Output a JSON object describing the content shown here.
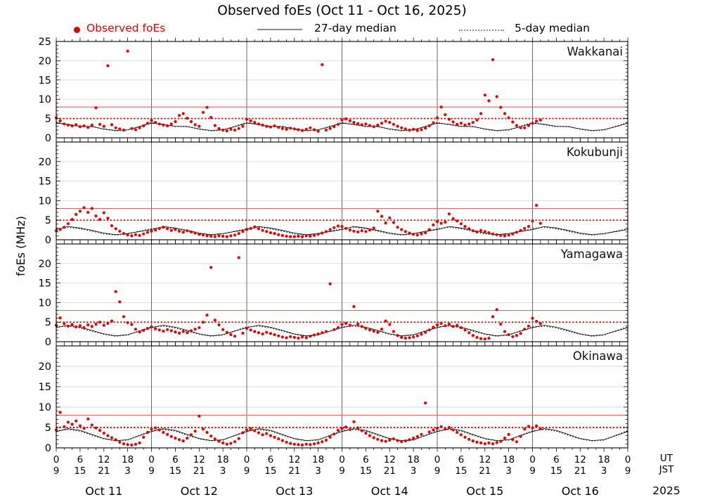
{
  "title": "Observed foEs (Oct 11 - Oct 16, 2025)",
  "legend": {
    "observed_label": "Observed foEs",
    "median27_label": "27-day median",
    "median5_label": "5-day median"
  },
  "colors": {
    "observed": "#e60000",
    "threshold_solid": "#d96b6b",
    "threshold_dotted": "#dd0000",
    "median_line": "#000000",
    "day_boundary": "#5a5a5a",
    "grid": "#d9d9d9",
    "frame": "#000000"
  },
  "axis": {
    "ylabel": "foEs (MHz)",
    "ut_label": "UT",
    "jst_label": "JST",
    "year_label": "2025",
    "dates": [
      "Oct 11",
      "Oct 12",
      "Oct 13",
      "Oct 14",
      "Oct 15",
      "Oct 16"
    ],
    "ut_cycle": [
      "0",
      "6",
      "12",
      "18"
    ],
    "jst_cycle": [
      "9",
      "15",
      "21",
      "3"
    ],
    "tick_step_hours": 6,
    "hours_total": 144
  },
  "chart_data": {
    "type": "scatter",
    "x_unit": "hours UT from Oct 11 00:00 (axis labeled in UT and JST)",
    "x_range_hours": [
      0,
      144
    ],
    "ylim": [
      0,
      25
    ],
    "yticks": [
      0,
      5,
      10,
      15,
      20,
      25
    ],
    "ylabel": "foEs (MHz)",
    "days": [
      "Oct 11",
      "Oct 12",
      "Oct 13",
      "Oct 14",
      "Oct 15",
      "Oct 16"
    ],
    "threshold_lines_mhz": {
      "solid_red": 8,
      "dotted_red": 5
    },
    "series_meta": {
      "observed": "red dots, hourly estimated values; data ends Oct 16 ~02 UT",
      "median27": "27-day median, thin solid black line, 3-hourly repeating daily pattern",
      "median5": "5-day median, dotted black line, 3-hourly repeating daily pattern"
    },
    "stations": [
      {
        "name": "Wakkanai",
        "observed": {
          "t0_hours": 0,
          "dt_hours": 1,
          "values": [
            5.2,
            4.4,
            3.6,
            3.3,
            3.1,
            3.4,
            2.9,
            3.1,
            2.7,
            3.3,
            7.8,
            3.5,
            3.0,
            18.7,
            3.4,
            2.6,
            2.3,
            2.0,
            22.5,
            2.4,
            2.1,
            2.6,
            3.1,
            3.8,
            4.5,
            4.0,
            3.6,
            3.3,
            3.1,
            3.6,
            4.2,
            5.8,
            6.3,
            5.1,
            4.2,
            3.4,
            3.0,
            6.6,
            7.9,
            5.3,
            3.2,
            2.4,
            2.0,
            1.8,
            2.2,
            2.0,
            2.4,
            3.0,
            4.8,
            4.4,
            4.0,
            3.6,
            3.3,
            3.0,
            2.8,
            3.1,
            2.7,
            2.4,
            2.2,
            2.5,
            2.3,
            2.1,
            1.9,
            2.2,
            2.6,
            2.1,
            1.7,
            19.0,
            2.0,
            2.4,
            2.9,
            3.5,
            4.6,
            4.9,
            4.4,
            4.0,
            3.7,
            3.4,
            3.6,
            3.2,
            2.9,
            3.3,
            3.8,
            4.3,
            4.0,
            3.5,
            3.0,
            2.6,
            2.3,
            2.0,
            2.2,
            1.9,
            2.1,
            2.5,
            3.1,
            3.9,
            5.2,
            8.0,
            6.0,
            4.8,
            4.1,
            3.5,
            3.8,
            3.3,
            3.6,
            4.0,
            4.6,
            6.3,
            11.1,
            9.6,
            20.3,
            10.7,
            7.9,
            6.3,
            5.2,
            4.1,
            3.2,
            2.6,
            2.6,
            3.2,
            3.8,
            4.3,
            4.6
          ]
        },
        "median27": {
          "dt_hours": 3,
          "hours_end": 144,
          "daily_pattern_3h": [
            3.8,
            3.5,
            3.0,
            2.9,
            2.3,
            1.9,
            2.1,
            2.9
          ]
        },
        "median5": {
          "dt_hours": 3,
          "hours_end": 144,
          "daily_pattern_3h": [
            4.0,
            3.4,
            2.9,
            3.0,
            2.2,
            1.8,
            2.0,
            3.0
          ]
        }
      },
      {
        "name": "Kokubunji",
        "observed": {
          "t0_hours": 0,
          "dt_hours": 1,
          "values": [
            2.3,
            2.6,
            3.2,
            4.1,
            5.2,
            6.5,
            7.3,
            8.2,
            7.0,
            8.0,
            6.1,
            5.2,
            6.9,
            5.5,
            3.6,
            2.8,
            2.2,
            1.6,
            1.2,
            1.0,
            1.3,
            1.1,
            1.5,
            1.9,
            2.2,
            2.5,
            2.9,
            3.2,
            2.8,
            2.4,
            2.6,
            2.2,
            1.9,
            2.3,
            2.0,
            1.7,
            1.4,
            1.2,
            1.0,
            0.9,
            0.8,
            1.0,
            0.9,
            0.8,
            1.0,
            1.2,
            1.6,
            2.1,
            2.6,
            2.9,
            3.3,
            2.8,
            2.4,
            2.1,
            1.8,
            1.6,
            1.3,
            1.1,
            0.9,
            0.8,
            0.8,
            0.9,
            0.8,
            1.0,
            0.9,
            1.1,
            1.4,
            1.7,
            2.1,
            2.6,
            3.1,
            3.5,
            3.4,
            2.9,
            2.5,
            2.2,
            2.0,
            2.3,
            2.1,
            2.5,
            3.0,
            7.3,
            6.0,
            4.3,
            5.6,
            4.4,
            3.2,
            2.6,
            2.1,
            1.7,
            1.4,
            1.2,
            1.5,
            1.8,
            2.6,
            3.8,
            4.6,
            4.2,
            4.5,
            6.6,
            5.4,
            4.8,
            4.1,
            3.4,
            2.8,
            2.3,
            2.0,
            2.4,
            2.1,
            1.8,
            1.5,
            1.3,
            1.1,
            1.0,
            1.2,
            1.5,
            1.9,
            2.4,
            2.9,
            3.4,
            4.8,
            8.8,
            4.2
          ]
        },
        "median27": {
          "dt_hours": 3,
          "hours_end": 144,
          "daily_pattern_3h": [
            2.6,
            3.4,
            3.0,
            2.4,
            1.7,
            1.3,
            1.6,
            2.1
          ]
        },
        "median5": {
          "dt_hours": 3,
          "hours_end": 144,
          "daily_pattern_3h": [
            2.8,
            3.2,
            2.8,
            2.2,
            1.5,
            1.2,
            1.5,
            2.2
          ]
        }
      },
      {
        "name": "Yamagawa",
        "observed": {
          "t0_hours": 0,
          "dt_hours": 1,
          "values": [
            4.2,
            6.1,
            4.6,
            4.0,
            4.4,
            3.8,
            4.1,
            3.6,
            4.3,
            3.9,
            4.5,
            5.0,
            4.2,
            4.7,
            5.3,
            12.8,
            10.2,
            6.4,
            4.9,
            4.4,
            3.2,
            2.5,
            2.9,
            3.4,
            3.8,
            3.3,
            3.0,
            2.7,
            3.1,
            2.8,
            2.5,
            2.2,
            2.6,
            2.3,
            2.8,
            3.2,
            3.6,
            5.0,
            6.8,
            19.0,
            5.5,
            4.3,
            3.1,
            2.4,
            1.8,
            1.4,
            21.5,
            2.2,
            3.4,
            3.0,
            2.6,
            2.3,
            2.0,
            2.4,
            2.1,
            1.8,
            1.5,
            1.2,
            1.0,
            1.3,
            1.1,
            0.9,
            1.2,
            1.0,
            1.4,
            1.7,
            2.0,
            2.3,
            2.6,
            14.8,
            3.1,
            3.6,
            4.4,
            4.7,
            4.2,
            9.0,
            4.5,
            3.9,
            3.4,
            3.0,
            2.7,
            2.4,
            3.2,
            5.3,
            4.4,
            2.6,
            1.6,
            1.1,
            0.9,
            1.0,
            1.2,
            1.5,
            1.9,
            2.4,
            3.0,
            3.7,
            4.3,
            4.7,
            4.1,
            4.5,
            3.9,
            4.2,
            3.6,
            3.0,
            2.3,
            1.6,
            1.1,
            0.8,
            0.7,
            0.9,
            6.4,
            8.2,
            4.5,
            2.6,
            1.8,
            1.3,
            1.6,
            2.1,
            3.2,
            4.0,
            6.0,
            5.2,
            4.6
          ]
        },
        "median27": {
          "dt_hours": 3,
          "hours_end": 144,
          "daily_pattern_3h": [
            3.6,
            4.2,
            3.7,
            2.9,
            2.0,
            1.5,
            1.8,
            2.7
          ]
        },
        "median5": {
          "dt_hours": 3,
          "hours_end": 144,
          "daily_pattern_3h": [
            3.8,
            4.0,
            3.5,
            2.7,
            1.9,
            1.4,
            1.7,
            2.8
          ]
        }
      },
      {
        "name": "Okinawa",
        "observed": {
          "t0_hours": 0,
          "dt_hours": 1,
          "values": [
            4.4,
            8.7,
            5.2,
            6.3,
            5.8,
            6.6,
            5.4,
            4.8,
            7.1,
            5.6,
            4.9,
            4.3,
            3.6,
            3.0,
            2.5,
            2.0,
            1.4,
            1.0,
            0.8,
            0.7,
            0.9,
            1.2,
            2.6,
            3.8,
            4.6,
            4.9,
            4.4,
            3.8,
            3.3,
            2.8,
            2.4,
            2.0,
            1.7,
            2.4,
            3.2,
            4.1,
            7.8,
            4.6,
            3.8,
            2.9,
            2.2,
            1.6,
            1.2,
            0.9,
            1.1,
            1.5,
            2.3,
            3.7,
            4.4,
            4.7,
            4.2,
            3.7,
            3.2,
            3.5,
            3.0,
            2.6,
            2.2,
            1.8,
            1.4,
            1.1,
            0.9,
            0.8,
            0.7,
            0.9,
            0.8,
            1.0,
            1.2,
            1.5,
            1.9,
            2.6,
            3.4,
            4.3,
            4.7,
            5.1,
            4.5,
            6.4,
            4.9,
            4.2,
            3.6,
            3.0,
            2.5,
            2.1,
            1.8,
            1.6,
            1.9,
            2.2,
            1.8,
            1.5,
            1.7,
            2.0,
            2.4,
            2.8,
            3.3,
            11.0,
            3.9,
            4.4,
            4.8,
            5.2,
            4.6,
            5.0,
            4.4,
            3.8,
            3.2,
            2.6,
            2.1,
            1.7,
            1.4,
            1.2,
            1.0,
            1.2,
            1.0,
            1.3,
            1.6,
            2.4,
            3.3,
            2.0,
            1.5,
            2.8,
            4.6,
            5.3,
            4.9,
            5.4,
            4.7
          ]
        },
        "median27": {
          "dt_hours": 3,
          "hours_end": 144,
          "daily_pattern_3h": [
            4.0,
            4.7,
            4.3,
            3.3,
            2.3,
            1.8,
            2.0,
            3.0
          ]
        },
        "median5": {
          "dt_hours": 3,
          "hours_end": 144,
          "daily_pattern_3h": [
            4.2,
            4.5,
            4.1,
            3.1,
            2.2,
            1.7,
            1.9,
            3.1
          ]
        }
      }
    ]
  }
}
